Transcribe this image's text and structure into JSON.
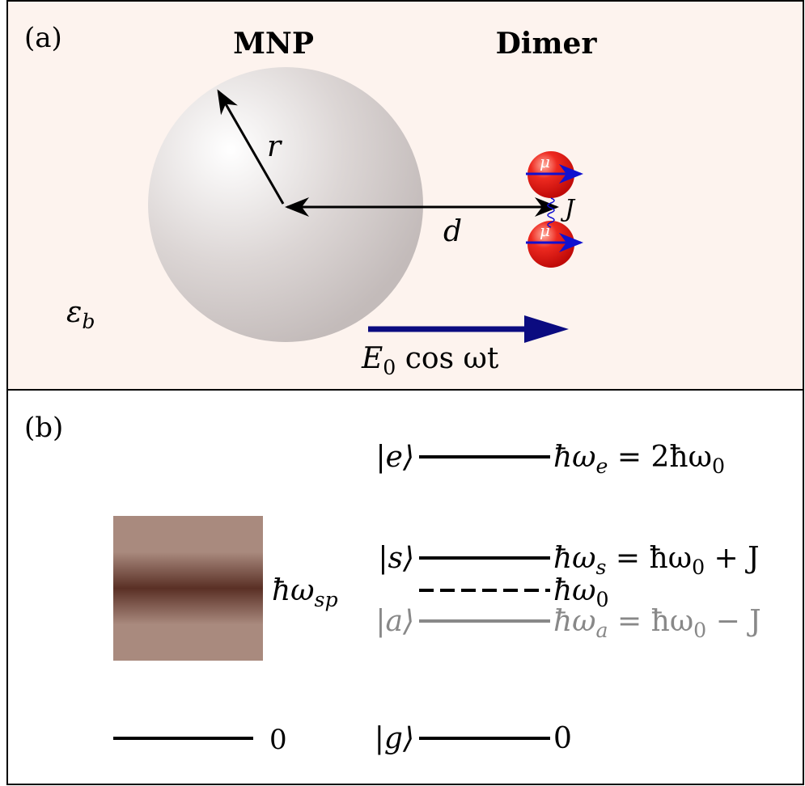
{
  "panel_a": {
    "label": "(a)",
    "mnp_title": "MNP",
    "dimer_title": "Dimer",
    "radius_label": "r",
    "distance_label": "d",
    "coupling_label": "J",
    "dipole_labels": [
      "μ",
      "μ"
    ],
    "medium_label": [
      {
        "t": "ε"
      },
      {
        "s": "b"
      }
    ],
    "field_label": [
      {
        "t": "E"
      },
      {
        "s": "0"
      },
      {
        "t": " cos ωt"
      }
    ]
  },
  "panel_b": {
    "label": "(b)",
    "plasmon_label": [
      {
        "t": "ħω"
      },
      {
        "s": "sp"
      }
    ],
    "mnp_ground": "0",
    "levels": [
      {
        "state": "|e⟩",
        "energy": [
          {
            "t": "ħω"
          },
          {
            "s": "e"
          },
          {
            "t": " = 2ħω"
          },
          {
            "s": "0"
          }
        ]
      },
      {
        "state": "|s⟩",
        "energy": [
          {
            "t": "ħω"
          },
          {
            "s": "s"
          },
          {
            "t": " = ħω"
          },
          {
            "s": "0"
          },
          {
            "t": " + J"
          }
        ]
      },
      {
        "state": "",
        "energy": [
          {
            "t": "ħω"
          },
          {
            "s": "0"
          }
        ]
      },
      {
        "state": "|a⟩",
        "energy": [
          {
            "t": "ħω"
          },
          {
            "s": "a"
          },
          {
            "t": " = ħω"
          },
          {
            "s": "0"
          },
          {
            "t": " − J"
          }
        ]
      },
      {
        "state": "|g⟩",
        "energy": [
          {
            "t": "0"
          }
        ]
      }
    ]
  }
}
